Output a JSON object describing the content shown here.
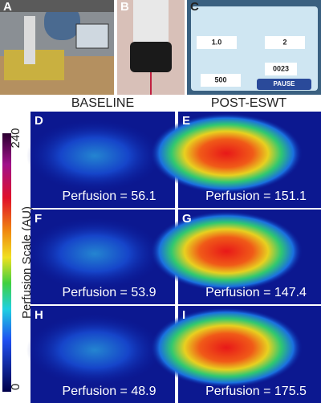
{
  "figure": {
    "photos": [
      {
        "letter": "A"
      },
      {
        "letter": "B"
      },
      {
        "letter": "C",
        "screen": [
          "1.0",
          "2",
          "500",
          "0023",
          "PAUSE"
        ]
      }
    ],
    "columns": [
      "BASELINE",
      "POST-ESWT"
    ],
    "colorbar": {
      "label": "Perfusion Scale (AU)",
      "ticks": [
        "240",
        "0"
      ]
    },
    "images": [
      {
        "letter": "D",
        "perfusion": "Perfusion = 56.1"
      },
      {
        "letter": "E",
        "perfusion": "Perfusion = 151.1"
      },
      {
        "letter": "F",
        "perfusion": "Perfusion = 53.9"
      },
      {
        "letter": "G",
        "perfusion": "Perfusion = 147.4"
      },
      {
        "letter": "H",
        "perfusion": "Perfusion = 48.9"
      },
      {
        "letter": "I",
        "perfusion": "Perfusion = 175.5"
      }
    ]
  }
}
